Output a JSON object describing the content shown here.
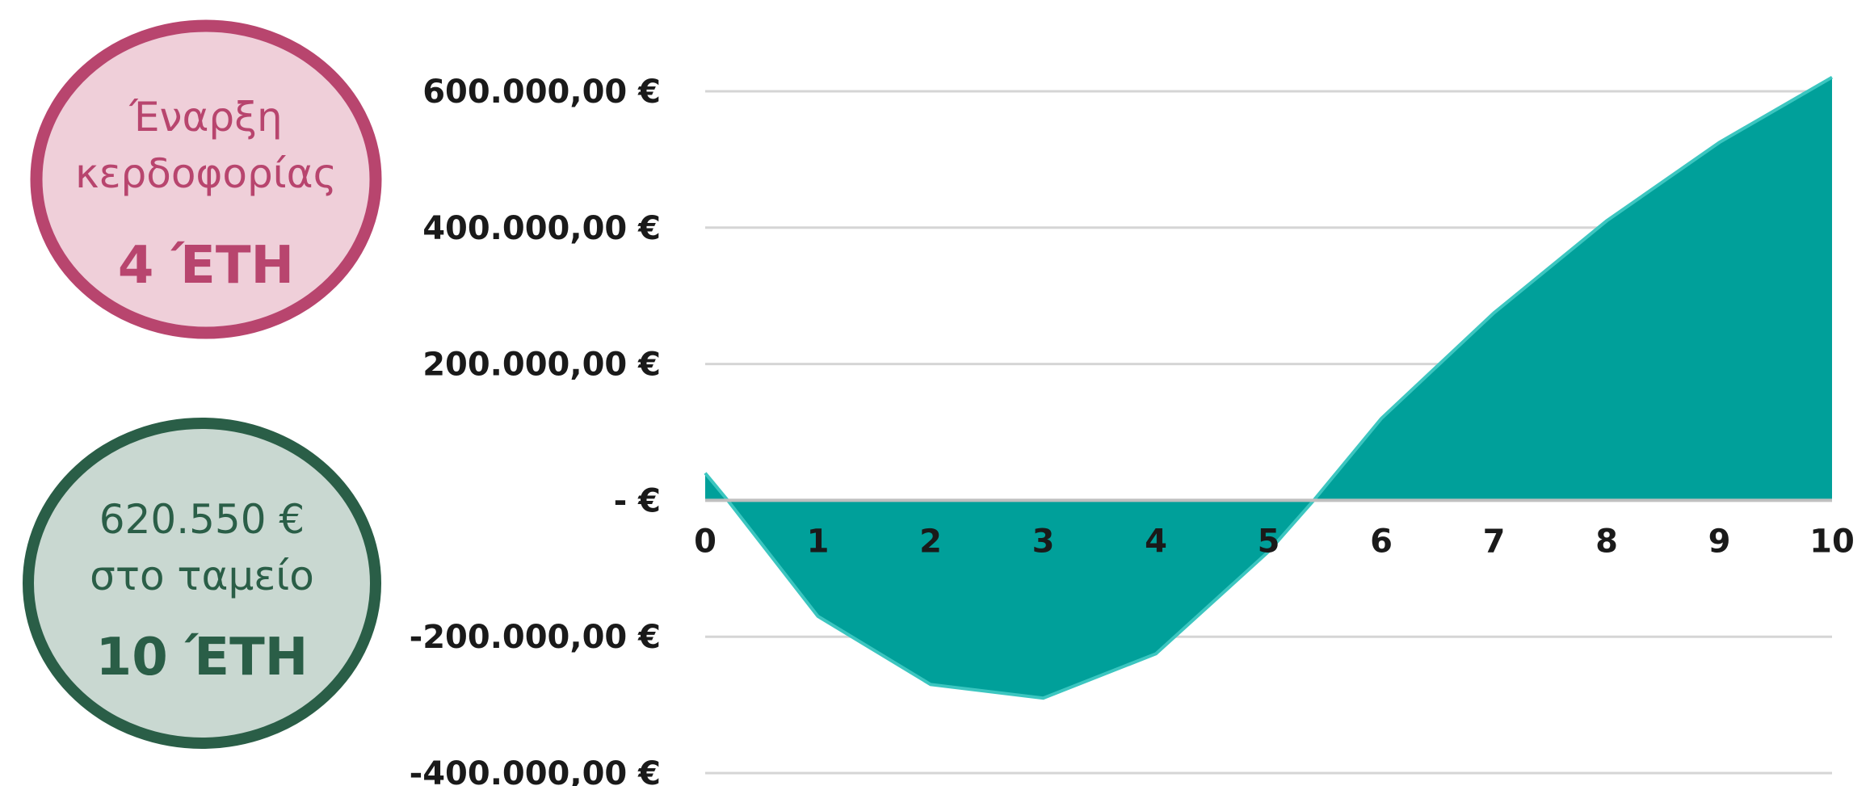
{
  "badges": {
    "profit_start": {
      "line1": "Έναρξη",
      "line2": "κερδοφορίας",
      "value": "4 ΈΤΗ",
      "border_color": "#b8456e",
      "fill_color": "#efcfd9",
      "text_color": "#b8456e"
    },
    "cash": {
      "line1": "620.550 €",
      "line2": "στο ταμείο",
      "value": "10 ΈΤΗ",
      "border_color": "#2a5e47",
      "fill_color": "#c9d8d1",
      "text_color": "#2a5e47"
    }
  },
  "chart_data": {
    "type": "area",
    "title": "",
    "xlabel": "",
    "ylabel": "",
    "x": [
      0,
      0.2,
      1,
      2,
      3,
      4,
      5,
      5.4,
      6,
      7,
      8,
      9,
      10
    ],
    "values": [
      40000,
      0,
      -170000,
      -270000,
      -290000,
      -225000,
      -75000,
      0,
      120000,
      275000,
      410000,
      525000,
      620550
    ],
    "xlim": [
      0,
      10
    ],
    "ylim": [
      -400000,
      600000
    ],
    "x_ticks": [
      "0",
      "1",
      "2",
      "3",
      "4",
      "5",
      "6",
      "7",
      "8",
      "9",
      "10"
    ],
    "y_ticks": [
      {
        "value": 600000,
        "label": "600.000,00 €"
      },
      {
        "value": 400000,
        "label": "400.000,00 €"
      },
      {
        "value": 200000,
        "label": "200.000,00 €"
      },
      {
        "value": 0,
        "label": "-   €"
      },
      {
        "value": -200000,
        "label": "-200.000,00 €"
      },
      {
        "value": -400000,
        "label": "-400.000,00 €"
      }
    ],
    "grid": true,
    "fill_color": "#00a09a",
    "grid_color": "#d5d5d5",
    "axis_color": "#bfbfbf"
  }
}
